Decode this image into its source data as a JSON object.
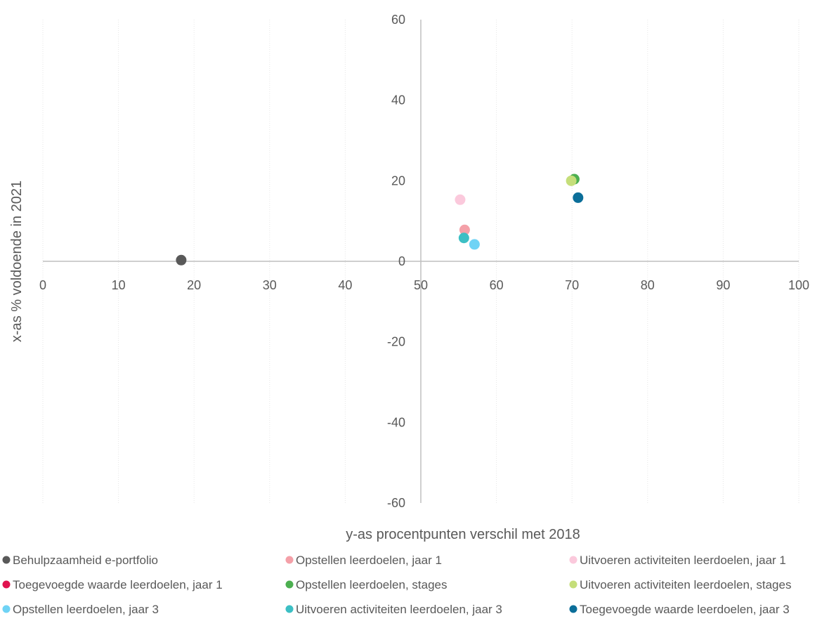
{
  "chart_data": {
    "type": "scatter",
    "title": "",
    "xlabel": "y-as procentpunten verschil met 2018",
    "ylabel": "x-as  % voldoende in 2021",
    "xlim": [
      0,
      100
    ],
    "ylim": [
      -60,
      60
    ],
    "x_ticks": [
      "0",
      "10",
      "20",
      "30",
      "40",
      "50",
      "60",
      "70",
      "80",
      "90",
      "100"
    ],
    "y_ticks": [
      "60",
      "40",
      "20",
      "0",
      "-20",
      "-40",
      "-60"
    ],
    "grid": "vertical gridlines only",
    "legend_position": "bottom",
    "series": [
      {
        "name": "Behulpzaamheid e-portfolio",
        "color": "#595959",
        "points": [
          {
            "x": 18.3,
            "y": 0.3
          }
        ]
      },
      {
        "name": "Opstellen leerdoelen, jaar 1",
        "color": "#F4A0A8",
        "points": [
          {
            "x": 55.8,
            "y": 7.8
          }
        ]
      },
      {
        "name": "Uitvoeren activiteiten leerdoelen, jaar 1",
        "color": "#FBC9DC",
        "points": [
          {
            "x": 55.2,
            "y": 15.3
          }
        ]
      },
      {
        "name": "Toegevoegde waarde leerdoelen, jaar 1",
        "color": "#E0134F",
        "points": []
      },
      {
        "name": "Opstellen leerdoelen, stages",
        "color": "#4CAF50",
        "points": [
          {
            "x": 70.3,
            "y": 20.4
          }
        ]
      },
      {
        "name": "Uitvoeren activiteiten leerdoelen, stages",
        "color": "#C5DE7A",
        "points": [
          {
            "x": 69.9,
            "y": 20.0
          }
        ]
      },
      {
        "name": "Opstellen leerdoelen, jaar 3",
        "color": "#6FD3F5",
        "points": [
          {
            "x": 57.1,
            "y": 4.2
          }
        ]
      },
      {
        "name": "Uitvoeren activiteiten leerdoelen, jaar 3",
        "color": "#3CBFC4",
        "points": [
          {
            "x": 55.7,
            "y": 5.8
          }
        ]
      },
      {
        "name": "Toegevoegde waarde leerdoelen, jaar 3",
        "color": "#0B6E99",
        "points": [
          {
            "x": 70.8,
            "y": 15.8
          }
        ]
      }
    ]
  }
}
